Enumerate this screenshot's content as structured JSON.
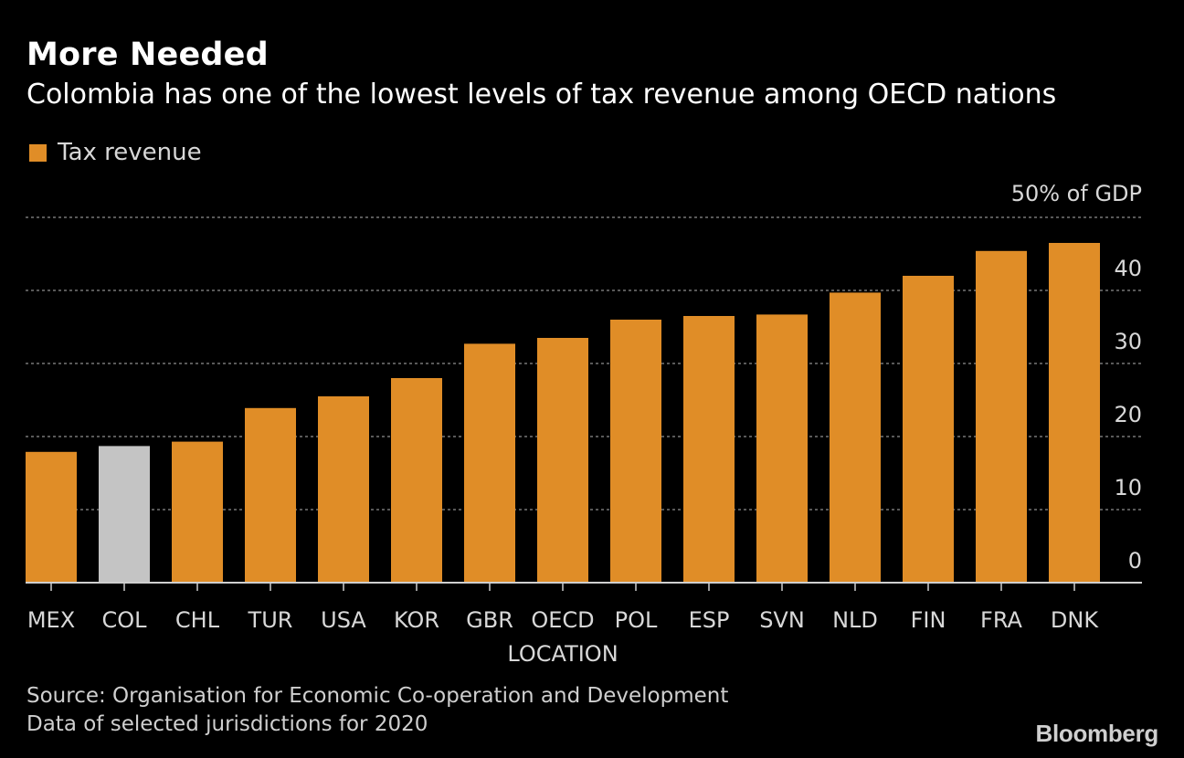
{
  "header": {
    "title": "More Needed",
    "subtitle": "Colombia has one of the lowest levels of tax revenue among OECD nations"
  },
  "legend": {
    "label": "Tax revenue"
  },
  "footer": {
    "source": "Source: Organisation for Economic Co-operation and Development",
    "note": "Data of selected jurisdictions for 2020",
    "brand": "Bloomberg"
  },
  "colors": {
    "bar": "#e08d27",
    "highlight": "#c4c4c4",
    "grid": "#777777",
    "axis_text": "#d8d8d8"
  },
  "chart_data": {
    "type": "bar",
    "categories": [
      "MEX",
      "COL",
      "CHL",
      "TUR",
      "USA",
      "KOR",
      "GBR",
      "OECD",
      "POL",
      "ESP",
      "SVN",
      "NLD",
      "FIN",
      "FRA",
      "DNK"
    ],
    "values": [
      17.9,
      18.7,
      19.3,
      23.9,
      25.5,
      28.0,
      32.7,
      33.5,
      36.0,
      36.5,
      36.7,
      39.7,
      42.0,
      45.4,
      46.5
    ],
    "highlight_category": "COL",
    "xlabel": "LOCATION",
    "ylabel": "",
    "y_unit_label": "50% of GDP",
    "yticks": [
      0,
      10,
      20,
      30,
      40,
      50
    ],
    "ylim": [
      0,
      50
    ],
    "grid": true,
    "legend_position": "top-left"
  }
}
